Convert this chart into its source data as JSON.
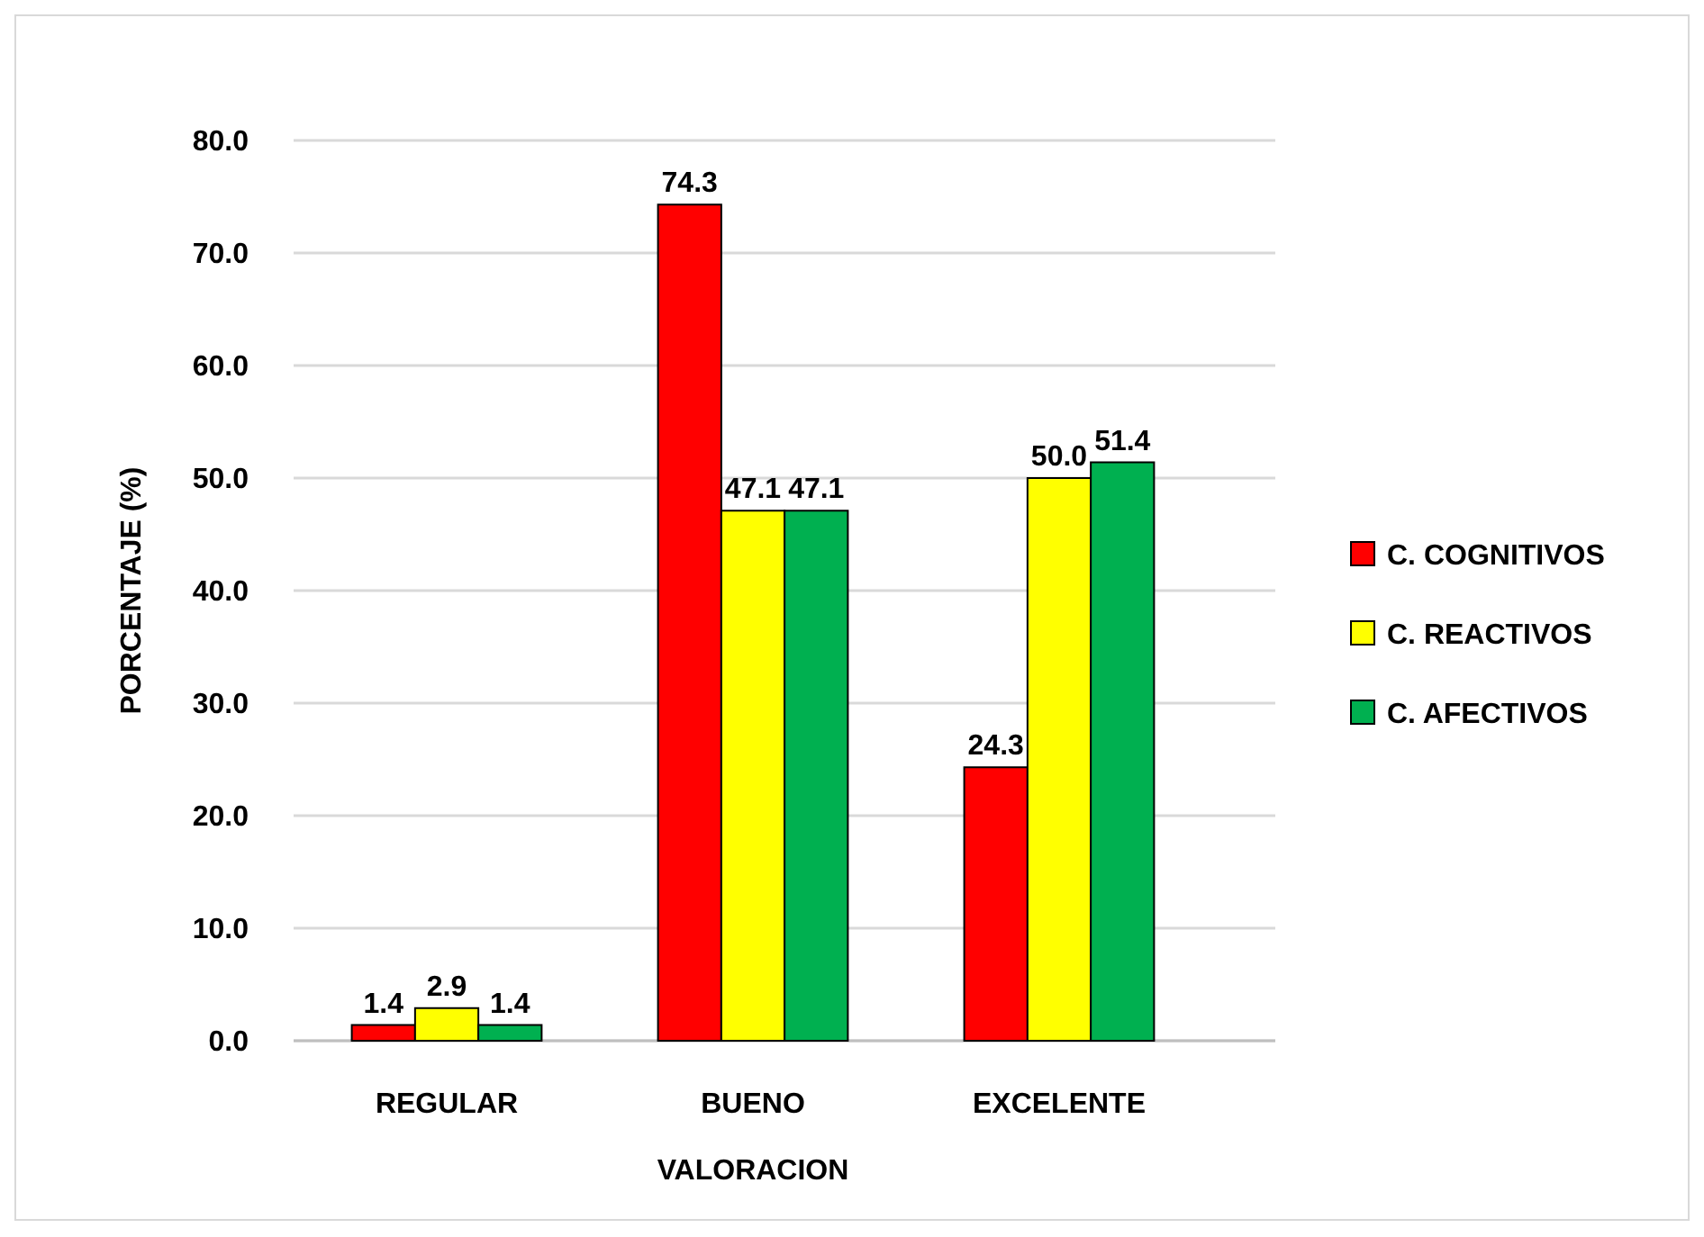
{
  "chart_data": {
    "type": "bar",
    "xlabel": "VALORACION",
    "ylabel": "PORCENTAJE (%)",
    "categories": [
      "REGULAR",
      "BUENO",
      "EXCELENTE"
    ],
    "series": [
      {
        "name": "C. COGNITIVOS",
        "color": "#ff0000",
        "values": [
          1.4,
          74.3,
          24.3
        ],
        "value_labels": [
          "1.4",
          "74.3",
          "24.3"
        ]
      },
      {
        "name": "C. REACTIVOS",
        "color": "#ffff00",
        "values": [
          2.9,
          47.1,
          50.0
        ],
        "value_labels": [
          "2.9",
          "47.1",
          "50.0"
        ]
      },
      {
        "name": "C. AFECTIVOS",
        "color": "#00b050",
        "values": [
          1.4,
          47.1,
          51.4
        ],
        "value_labels": [
          "1.4",
          "47.1",
          "51.4"
        ]
      }
    ],
    "ylim": [
      0,
      80
    ],
    "yticks": [
      {
        "value": 0,
        "label": "0.0"
      },
      {
        "value": 10,
        "label": "10.0"
      },
      {
        "value": 20,
        "label": "20.0"
      },
      {
        "value": 30,
        "label": "30.0"
      },
      {
        "value": 40,
        "label": "40.0"
      },
      {
        "value": 50,
        "label": "50.0"
      },
      {
        "value": 60,
        "label": "60.0"
      },
      {
        "value": 70,
        "label": "70.0"
      },
      {
        "value": 80,
        "label": "80.0"
      }
    ],
    "grid": "y",
    "legend": "right"
  }
}
